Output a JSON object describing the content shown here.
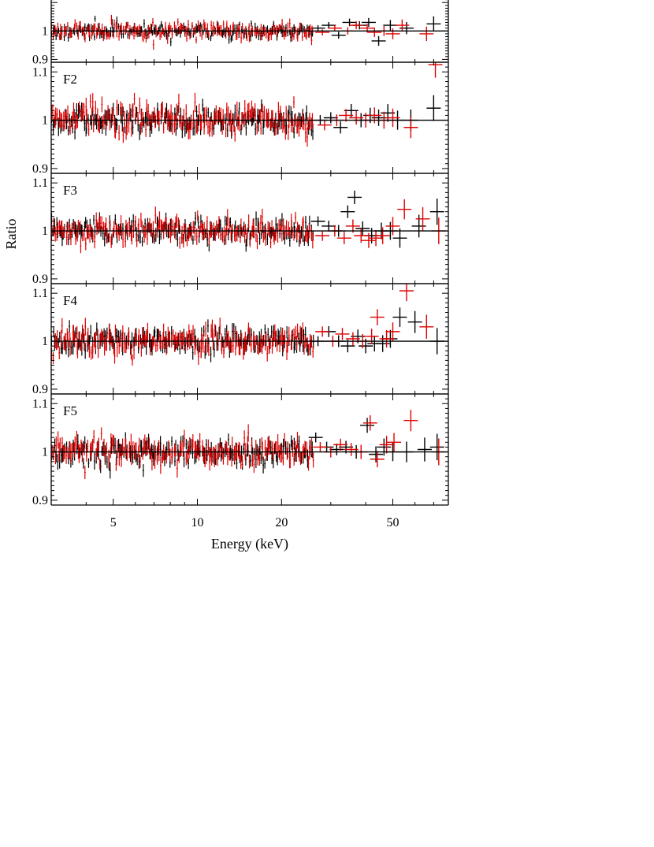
{
  "chart_data": {
    "type": "scatter",
    "xlabel": "Energy (keV)",
    "ylabel": "Ratio",
    "x_scale": "log",
    "xlim": [
      3,
      79
    ],
    "x_ticks": [
      5,
      10,
      20,
      50
    ],
    "x_tick_labels": [
      "5",
      "10",
      "20",
      "50"
    ],
    "y_ticks": [
      0.9,
      1.0,
      1.1
    ],
    "y_tick_labels": [
      "0.9",
      "1",
      "1.1"
    ],
    "reference_line": 1.0,
    "colors": {
      "black_series": "#000000",
      "red_series": "#e00000"
    },
    "panels": [
      {
        "label": "",
        "ylim": [
          0.89,
          1.12
        ],
        "visible_ylim": [
          0.89,
          1.035
        ],
        "y_ticks_shown": [
          0.9,
          1.0
        ],
        "series": [
          {
            "color": "black",
            "scatter_sigma": 0.022,
            "n_points": 180,
            "seed": 11,
            "points": [
              [
                27.0,
                1.01
              ],
              [
                29.5,
                1.02
              ],
              [
                32.0,
                0.985
              ],
              [
                35.0,
                1.03
              ],
              [
                38.0,
                1.02
              ],
              [
                41.0,
                1.03
              ],
              [
                44.5,
                0.965
              ],
              [
                49.0,
                1.02
              ],
              [
                56.0,
                1.01
              ],
              [
                70.0,
                1.025
              ]
            ]
          },
          {
            "color": "red",
            "scatter_sigma": 0.025,
            "n_points": 180,
            "seed": 12,
            "points": [
              [
                28.0,
                0.995
              ],
              [
                31.0,
                1.01
              ],
              [
                34.5,
                1.0
              ],
              [
                37.0,
                1.02
              ],
              [
                40.5,
                1.01
              ],
              [
                43.0,
                0.995
              ],
              [
                46.5,
                1.0
              ],
              [
                50.0,
                0.99
              ],
              [
                54.0,
                1.02
              ],
              [
                66.0,
                0.99
              ]
            ]
          }
        ]
      },
      {
        "label": "F2",
        "ylim": [
          0.89,
          1.12
        ],
        "series": [
          {
            "color": "black",
            "scatter_sigma": 0.022,
            "n_points": 180,
            "seed": 21,
            "points": [
              [
                27.5,
                1.0
              ],
              [
                30.0,
                1.005
              ],
              [
                32.5,
                0.985
              ],
              [
                35.5,
                1.02
              ],
              [
                38.5,
                1.0
              ],
              [
                41.5,
                1.01
              ],
              [
                44.5,
                1.005
              ],
              [
                48.0,
                1.015
              ],
              [
                52.0,
                1.0
              ],
              [
                58.0,
                1.0
              ],
              [
                70.0,
                1.025
              ]
            ]
          },
          {
            "color": "red",
            "scatter_sigma": 0.025,
            "n_points": 180,
            "seed": 22,
            "points": [
              [
                28.5,
                0.99
              ],
              [
                31.5,
                1.0
              ],
              [
                34.0,
                1.01
              ],
              [
                37.0,
                1.005
              ],
              [
                40.0,
                1.0
              ],
              [
                43.0,
                1.01
              ],
              [
                46.5,
                1.0
              ],
              [
                50.0,
                1.005
              ],
              [
                58.0,
                0.985
              ],
              [
                71.0,
                1.115
              ]
            ]
          }
        ]
      },
      {
        "label": "F3",
        "ylim": [
          0.89,
          1.12
        ],
        "series": [
          {
            "color": "black",
            "scatter_sigma": 0.02,
            "n_points": 180,
            "seed": 31,
            "points": [
              [
                27.0,
                1.02
              ],
              [
                29.5,
                1.01
              ],
              [
                32.0,
                1.0
              ],
              [
                34.5,
                1.04
              ],
              [
                36.5,
                1.07
              ],
              [
                39.0,
                1.005
              ],
              [
                42.0,
                0.99
              ],
              [
                45.5,
                1.0
              ],
              [
                49.0,
                1.0
              ],
              [
                53.0,
                0.985
              ],
              [
                62.0,
                1.01
              ],
              [
                72.0,
                1.04
              ]
            ]
          },
          {
            "color": "red",
            "scatter_sigma": 0.023,
            "n_points": 180,
            "seed": 32,
            "points": [
              [
                28.0,
                0.99
              ],
              [
                31.0,
                1.0
              ],
              [
                33.5,
                0.985
              ],
              [
                36.0,
                1.01
              ],
              [
                38.5,
                0.99
              ],
              [
                41.0,
                0.98
              ],
              [
                43.5,
                0.985
              ],
              [
                46.0,
                0.99
              ],
              [
                50.0,
                1.01
              ],
              [
                55.0,
                1.045
              ],
              [
                64.0,
                1.025
              ],
              [
                73.0,
                1.0
              ]
            ]
          }
        ]
      },
      {
        "label": "F4",
        "ylim": [
          0.89,
          1.12
        ],
        "series": [
          {
            "color": "black",
            "scatter_sigma": 0.022,
            "n_points": 180,
            "seed": 41,
            "points": [
              [
                27.0,
                1.0
              ],
              [
                29.5,
                1.02
              ],
              [
                32.0,
                1.0
              ],
              [
                34.5,
                0.99
              ],
              [
                37.5,
                1.01
              ],
              [
                40.0,
                0.99
              ],
              [
                43.0,
                0.995
              ],
              [
                46.0,
                0.995
              ],
              [
                49.0,
                1.005
              ],
              [
                53.0,
                1.05
              ],
              [
                60.0,
                1.04
              ],
              [
                72.0,
                1.0
              ]
            ]
          },
          {
            "color": "red",
            "scatter_sigma": 0.025,
            "n_points": 180,
            "seed": 42,
            "points": [
              [
                28.0,
                1.02
              ],
              [
                30.5,
                1.0
              ],
              [
                33.0,
                1.015
              ],
              [
                36.0,
                1.005
              ],
              [
                39.0,
                1.0
              ],
              [
                42.0,
                1.01
              ],
              [
                44.0,
                1.05
              ],
              [
                47.5,
                1.005
              ],
              [
                50.0,
                1.02
              ],
              [
                56.0,
                1.105
              ],
              [
                66.0,
                1.03
              ]
            ]
          }
        ]
      },
      {
        "label": "F5",
        "ylim": [
          0.89,
          1.12
        ],
        "series": [
          {
            "color": "black",
            "scatter_sigma": 0.022,
            "n_points": 180,
            "seed": 51,
            "points": [
              [
                26.5,
                1.03
              ],
              [
                29.0,
                1.01
              ],
              [
                31.5,
                1.005
              ],
              [
                34.0,
                1.01
              ],
              [
                37.0,
                1.0
              ],
              [
                40.5,
                1.055
              ],
              [
                43.5,
                0.995
              ],
              [
                46.5,
                1.01
              ],
              [
                50.0,
                1.0
              ],
              [
                56.0,
                1.0
              ],
              [
                65.0,
                1.005
              ],
              [
                72.0,
                1.01
              ]
            ]
          },
          {
            "color": "red",
            "scatter_sigma": 0.025,
            "n_points": 180,
            "seed": 52,
            "points": [
              [
                27.5,
                1.01
              ],
              [
                30.0,
                1.0
              ],
              [
                32.5,
                1.015
              ],
              [
                35.5,
                1.005
              ],
              [
                38.5,
                1.0
              ],
              [
                41.5,
                1.06
              ],
              [
                44.0,
                0.985
              ],
              [
                47.5,
                1.015
              ],
              [
                50.5,
                1.02
              ],
              [
                58.0,
                1.065
              ],
              [
                73.0,
                1.0
              ]
            ]
          }
        ]
      }
    ]
  }
}
